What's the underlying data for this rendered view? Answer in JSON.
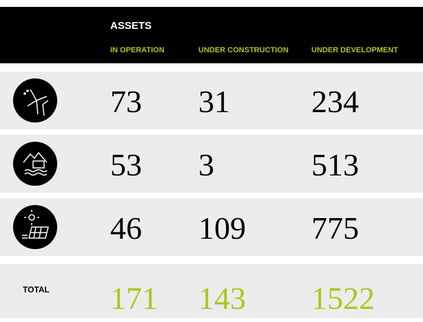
{
  "table": {
    "title": "ASSETS",
    "columns": [
      "IN OPERATION",
      "UNDER CONSTRUCTION",
      "UNDER DEVELOPMENT"
    ],
    "rows": [
      {
        "values": [
          73,
          31,
          234
        ]
      },
      {
        "values": [
          53,
          3,
          513
        ]
      },
      {
        "values": [
          46,
          109,
          775
        ]
      }
    ],
    "total": {
      "label": "TOTAL",
      "values": [
        171,
        143,
        1522
      ]
    }
  }
}
